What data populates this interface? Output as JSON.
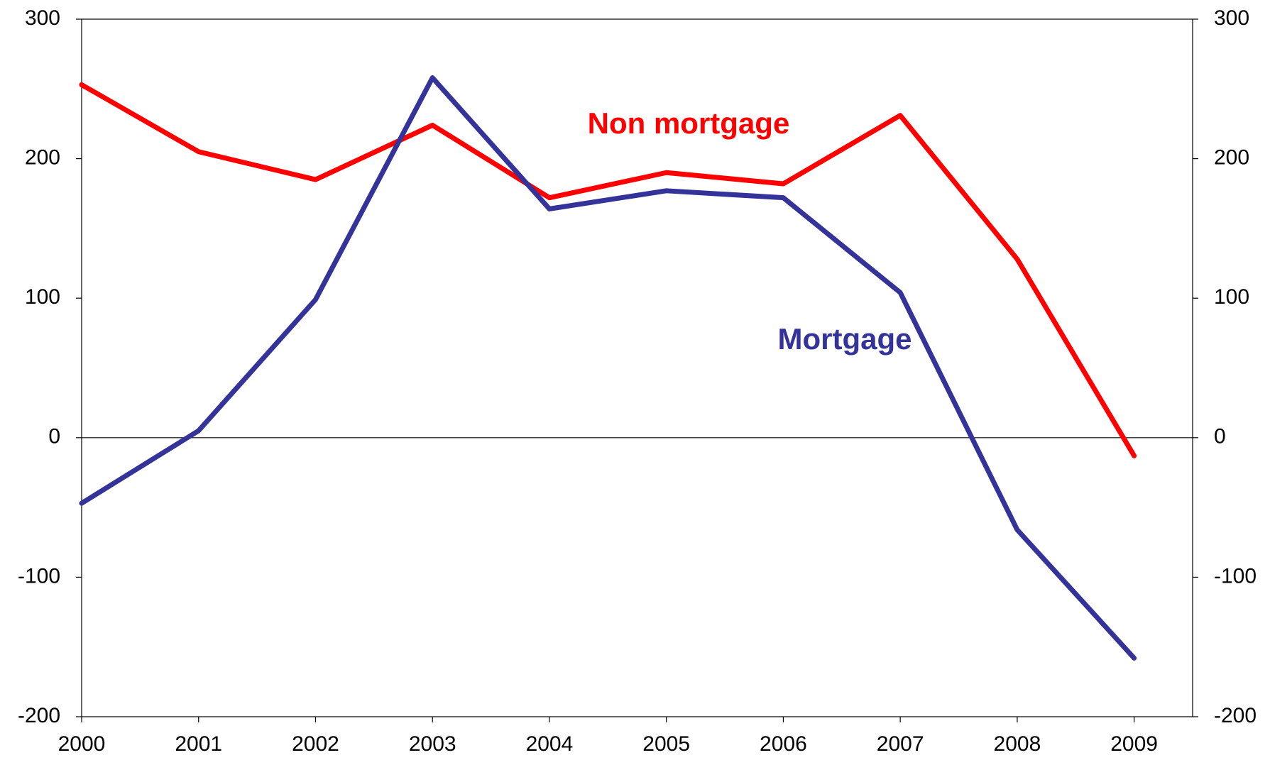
{
  "chart_data": {
    "type": "line",
    "x": [
      2000,
      2001,
      2002,
      2003,
      2004,
      2005,
      2006,
      2007,
      2008,
      2009
    ],
    "series": [
      {
        "name": "Non mortgage",
        "color": "#ff0000",
        "values": [
          253,
          205,
          185,
          224,
          172,
          190,
          182,
          231,
          128,
          -13
        ]
      },
      {
        "name": "Mortgage",
        "color": "#333399",
        "values": [
          -47,
          5,
          99,
          258,
          164,
          177,
          172,
          104,
          -66,
          -158
        ]
      }
    ],
    "xlim": [
      2000,
      2009.5
    ],
    "xticks": [
      2000,
      2001,
      2002,
      2003,
      2004,
      2005,
      2006,
      2007,
      2008,
      2009
    ],
    "ylim": [
      -200,
      300
    ],
    "yticks": [
      -200,
      -100,
      0,
      100,
      200,
      300
    ],
    "y2lim": [
      -200,
      300
    ],
    "y2ticks": [
      -200,
      -100,
      0,
      100,
      200,
      300
    ]
  }
}
